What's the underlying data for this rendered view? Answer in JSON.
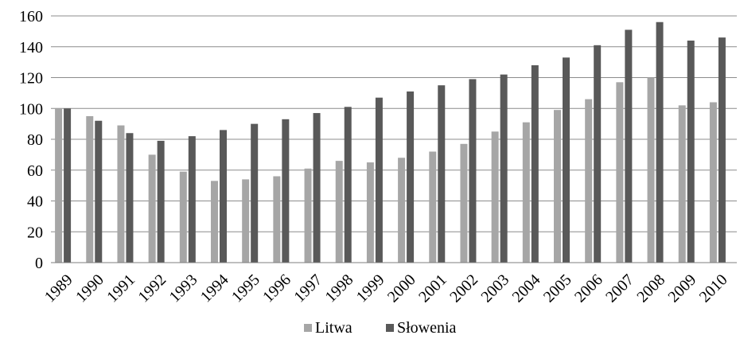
{
  "chart_data": {
    "type": "bar",
    "title": "",
    "xlabel": "",
    "ylabel": "",
    "categories": [
      "1989",
      "1990",
      "1991",
      "1992",
      "1993",
      "1994",
      "1995",
      "1996",
      "1997",
      "1998",
      "1999",
      "2000",
      "2001",
      "2002",
      "2003",
      "2004",
      "2005",
      "2006",
      "2007",
      "2008",
      "2009",
      "2010"
    ],
    "series": [
      {
        "name": "Litwa",
        "color": "#a6a6a6",
        "values": [
          100,
          95,
          89,
          70,
          59,
          53,
          54,
          56,
          61,
          66,
          65,
          68,
          72,
          77,
          85,
          91,
          99,
          106,
          117,
          120,
          102,
          104
        ]
      },
      {
        "name": "Słowenia",
        "color": "#595959",
        "values": [
          100,
          92,
          84,
          79,
          82,
          86,
          90,
          93,
          97,
          101,
          107,
          111,
          115,
          119,
          122,
          128,
          133,
          141,
          151,
          156,
          144,
          146
        ]
      }
    ],
    "ylim": [
      0,
      160
    ],
    "yticks": [
      0,
      20,
      40,
      60,
      80,
      100,
      120,
      140,
      160
    ],
    "ytick_labels": [
      "0",
      "20",
      "40",
      "60",
      "80",
      "100",
      "120",
      "140",
      "160"
    ],
    "grid": true,
    "legend": "bottom-center"
  }
}
